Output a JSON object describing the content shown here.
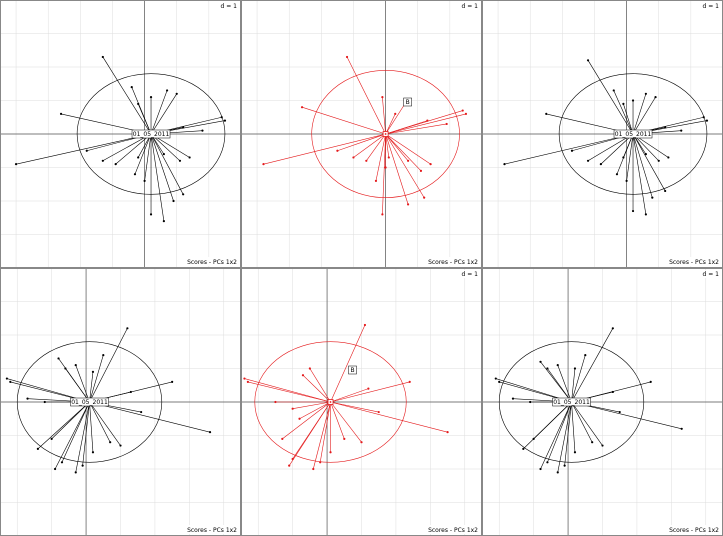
{
  "figure": {
    "d_label": "d = 1",
    "panel_caption": "Scores - PCs 1x2"
  },
  "colors": {
    "default": "#000000",
    "highlight": "#e41a1c",
    "grid": "#dddddd",
    "axis": "#555555"
  },
  "chart_data": [
    {
      "type": "scatter",
      "subtype": "star-plot of scores with correlation circle",
      "panel": "top-left",
      "caption": "Scores - PCs 1x2",
      "d_value": "d = 1",
      "center_label": "01_05_2011",
      "color": "#000000",
      "xlim": [
        -4.5,
        3.0
      ],
      "ylim": [
        -4.0,
        4.0
      ],
      "circle": {
        "cx": 0.2,
        "cy": 0.0,
        "rx": 2.3,
        "ry": 1.8
      },
      "rays": [
        [
          -1.3,
          2.3
        ],
        [
          -0.4,
          1.4
        ],
        [
          -0.2,
          0.9
        ],
        [
          0.2,
          1.1
        ],
        [
          0.7,
          1.3
        ],
        [
          1.0,
          1.2
        ],
        [
          -2.6,
          0.6
        ],
        [
          2.4,
          0.5
        ],
        [
          2.5,
          0.4
        ],
        [
          1.8,
          0.1
        ],
        [
          1.2,
          0.2
        ],
        [
          -4.0,
          -0.9
        ],
        [
          -1.8,
          -0.5
        ],
        [
          -1.3,
          -0.8
        ],
        [
          -0.9,
          -0.9
        ],
        [
          -0.2,
          -0.7
        ],
        [
          0.6,
          -0.6
        ],
        [
          1.1,
          -0.8
        ],
        [
          1.4,
          -0.7
        ],
        [
          1.2,
          -1.8
        ],
        [
          0.9,
          -2.0
        ],
        [
          0.6,
          -2.6
        ],
        [
          0.2,
          -2.4
        ],
        [
          0.0,
          -1.4
        ],
        [
          -0.3,
          -1.2
        ]
      ],
      "point_labels": []
    },
    {
      "type": "scatter",
      "subtype": "star-plot of scores with correlation circle",
      "panel": "top-middle",
      "caption": "Scores - PCs 1x2",
      "d_value": "d = 1",
      "center_label": "",
      "color": "#e41a1c",
      "xlim": [
        -4.5,
        3.0
      ],
      "ylim": [
        -4.0,
        4.0
      ],
      "circle": {
        "cx": 0.0,
        "cy": 0.0,
        "rx": 2.3,
        "ry": 1.9
      },
      "rays": [
        [
          -1.2,
          2.3
        ],
        [
          -0.1,
          1.1
        ],
        [
          0.3,
          0.6
        ],
        [
          0.6,
          0.9
        ],
        [
          -2.6,
          0.8
        ],
        [
          2.4,
          0.7
        ],
        [
          2.5,
          0.6
        ],
        [
          1.9,
          0.3
        ],
        [
          1.3,
          0.4
        ],
        [
          -3.8,
          -0.9
        ],
        [
          -1.5,
          -0.5
        ],
        [
          -1.0,
          -0.7
        ],
        [
          -0.6,
          -0.8
        ],
        [
          0.1,
          -0.7
        ],
        [
          0.7,
          -0.8
        ],
        [
          1.1,
          -1.1
        ],
        [
          1.4,
          -0.9
        ],
        [
          1.2,
          -1.9
        ],
        [
          0.7,
          -2.1
        ],
        [
          -0.1,
          -2.4
        ],
        [
          -0.3,
          -1.4
        ],
        [
          0.0,
          -1.0
        ]
      ],
      "point_labels": [
        "B"
      ]
    },
    {
      "type": "scatter",
      "subtype": "star-plot of scores with correlation circle",
      "panel": "top-right",
      "caption": "Scores - PCs 1x2",
      "d_value": "d = 1",
      "center_label": "01_05_2011",
      "color": "#000000",
      "xlim": [
        -4.5,
        3.0
      ],
      "ylim": [
        -4.0,
        4.0
      ],
      "circle": {
        "cx": 0.2,
        "cy": 0.0,
        "rx": 2.3,
        "ry": 1.8
      },
      "rays": [
        [
          -1.2,
          2.2
        ],
        [
          -0.4,
          1.3
        ],
        [
          -0.1,
          0.9
        ],
        [
          0.2,
          1.0
        ],
        [
          0.6,
          1.2
        ],
        [
          0.9,
          1.1
        ],
        [
          -2.5,
          0.6
        ],
        [
          2.4,
          0.5
        ],
        [
          2.5,
          0.4
        ],
        [
          1.7,
          0.1
        ],
        [
          1.2,
          0.2
        ],
        [
          -3.8,
          -0.9
        ],
        [
          -1.7,
          -0.5
        ],
        [
          -1.2,
          -0.8
        ],
        [
          -0.8,
          -0.9
        ],
        [
          -0.1,
          -0.7
        ],
        [
          0.6,
          -0.6
        ],
        [
          1.0,
          -0.8
        ],
        [
          1.3,
          -0.7
        ],
        [
          1.2,
          -1.7
        ],
        [
          0.8,
          -1.9
        ],
        [
          0.6,
          -2.4
        ],
        [
          0.2,
          -2.3
        ],
        [
          0.0,
          -1.4
        ],
        [
          -0.3,
          -1.2
        ]
      ],
      "point_labels": []
    },
    {
      "type": "scatter",
      "subtype": "star-plot of scores with correlation circle",
      "panel": "bottom-left",
      "caption": "Scores - PCs 1x2",
      "d_value": "",
      "center_label": "01_05_2011",
      "color": "#000000",
      "xlim": [
        -2.5,
        4.5
      ],
      "ylim": [
        -4.0,
        4.0
      ],
      "circle": {
        "cx": 0.1,
        "cy": 0.0,
        "rx": 2.1,
        "ry": 1.8
      },
      "rays": [
        [
          1.2,
          2.2
        ],
        [
          0.5,
          1.4
        ],
        [
          0.2,
          0.9
        ],
        [
          -0.3,
          1.1
        ],
        [
          -0.6,
          1.0
        ],
        [
          -0.8,
          1.3
        ],
        [
          -2.3,
          0.7
        ],
        [
          -2.2,
          0.6
        ],
        [
          2.5,
          0.6
        ],
        [
          1.3,
          0.3
        ],
        [
          -1.7,
          0.1
        ],
        [
          -1.2,
          0.0
        ],
        [
          1.6,
          -0.3
        ],
        [
          3.6,
          -0.9
        ],
        [
          1.0,
          -1.3
        ],
        [
          0.7,
          -1.2
        ],
        [
          0.2,
          -1.5
        ],
        [
          -0.1,
          -1.9
        ],
        [
          -0.7,
          -1.8
        ],
        [
          -0.9,
          -2.0
        ],
        [
          -1.0,
          -1.1
        ],
        [
          -1.4,
          -1.4
        ],
        [
          -0.3,
          -2.1
        ]
      ],
      "point_labels": []
    },
    {
      "type": "scatter",
      "subtype": "star-plot of scores with correlation circle",
      "panel": "bottom-middle",
      "caption": "Scores - PCs 1x2",
      "d_value": "d = 1",
      "center_label": "",
      "color": "#e41a1c",
      "xlim": [
        -2.5,
        4.5
      ],
      "ylim": [
        -4.0,
        4.0
      ],
      "circle": {
        "cx": 0.1,
        "cy": 0.0,
        "rx": 2.2,
        "ry": 1.8
      },
      "rays": [
        [
          1.1,
          2.3
        ],
        [
          -0.5,
          1.0
        ],
        [
          -0.7,
          0.8
        ],
        [
          -2.4,
          0.7
        ],
        [
          -2.3,
          0.6
        ],
        [
          2.4,
          0.6
        ],
        [
          1.2,
          0.4
        ],
        [
          -1.5,
          0.0
        ],
        [
          -1.0,
          -0.2
        ],
        [
          1.5,
          -0.3
        ],
        [
          3.5,
          -0.9
        ],
        [
          1.0,
          -1.2
        ],
        [
          0.5,
          -1.1
        ],
        [
          0.1,
          -1.5
        ],
        [
          -0.2,
          -1.8
        ],
        [
          -1.0,
          -1.7
        ],
        [
          -1.1,
          -1.9
        ],
        [
          -1.3,
          -1.1
        ],
        [
          -0.4,
          -2.0
        ],
        [
          -0.8,
          -0.5
        ]
      ],
      "point_labels": [
        "B"
      ]
    },
    {
      "type": "scatter",
      "subtype": "star-plot of scores with correlation circle",
      "panel": "bottom-right",
      "caption": "Scores - PCs 1x2",
      "d_value": "d = 1",
      "center_label": "01_05_2011",
      "color": "#000000",
      "xlim": [
        -2.5,
        4.5
      ],
      "ylim": [
        -4.0,
        4.0
      ],
      "circle": {
        "cx": 0.1,
        "cy": 0.0,
        "rx": 2.1,
        "ry": 1.8
      },
      "rays": [
        [
          1.3,
          2.2
        ],
        [
          0.5,
          1.4
        ],
        [
          0.2,
          1.0
        ],
        [
          -0.3,
          1.1
        ],
        [
          -0.6,
          1.0
        ],
        [
          -0.8,
          1.2
        ],
        [
          -2.1,
          0.7
        ],
        [
          -2.0,
          0.6
        ],
        [
          2.4,
          0.6
        ],
        [
          1.3,
          0.3
        ],
        [
          -1.6,
          0.1
        ],
        [
          -1.1,
          0.0
        ],
        [
          1.5,
          -0.3
        ],
        [
          3.3,
          -0.8
        ],
        [
          1.0,
          -1.3
        ],
        [
          0.7,
          -1.2
        ],
        [
          0.2,
          -1.5
        ],
        [
          -0.1,
          -1.9
        ],
        [
          -0.6,
          -1.8
        ],
        [
          -0.8,
          -2.0
        ],
        [
          -1.0,
          -1.1
        ],
        [
          -1.3,
          -1.4
        ],
        [
          -0.3,
          -2.1
        ]
      ],
      "point_labels": []
    }
  ]
}
